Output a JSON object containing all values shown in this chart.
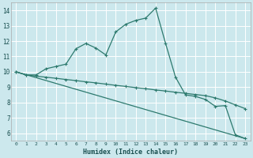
{
  "xlabel": "Humidex (Indice chaleur)",
  "bg_color": "#cce8ed",
  "grid_color": "#ffffff",
  "line_color": "#2d7a6e",
  "xlim": [
    -0.5,
    23.5
  ],
  "ylim": [
    5.5,
    14.5
  ],
  "yticks": [
    6,
    7,
    8,
    9,
    10,
    11,
    12,
    13,
    14
  ],
  "xticks": [
    0,
    1,
    2,
    3,
    4,
    5,
    6,
    7,
    8,
    9,
    10,
    11,
    12,
    13,
    14,
    15,
    16,
    17,
    18,
    19,
    20,
    21,
    22,
    23
  ],
  "series1_x": [
    0,
    1,
    2,
    3,
    4,
    5,
    6,
    7,
    8,
    9,
    10,
    11,
    12,
    13,
    14,
    15,
    16,
    17,
    18,
    19,
    20,
    21,
    22,
    23
  ],
  "series1_y": [
    10.0,
    9.8,
    9.8,
    10.2,
    10.35,
    10.5,
    11.5,
    11.85,
    11.55,
    11.1,
    12.6,
    13.1,
    13.35,
    13.5,
    14.15,
    11.85,
    9.65,
    8.5,
    8.4,
    8.2,
    7.75,
    7.8,
    5.9,
    5.65
  ],
  "series2_x": [
    0,
    1,
    2,
    3,
    4,
    5,
    6,
    7,
    8,
    9,
    10,
    11,
    12,
    13,
    14,
    15,
    16,
    17,
    18,
    19,
    20,
    21,
    22,
    23
  ],
  "series2_y": [
    10.0,
    9.8,
    9.72,
    9.65,
    9.58,
    9.5,
    9.43,
    9.35,
    9.28,
    9.2,
    9.12,
    9.05,
    8.97,
    8.9,
    8.82,
    8.75,
    8.67,
    8.6,
    8.52,
    8.45,
    8.3,
    8.1,
    7.85,
    7.6
  ],
  "series3_x": [
    0,
    23
  ],
  "series3_y": [
    10.0,
    5.65
  ]
}
